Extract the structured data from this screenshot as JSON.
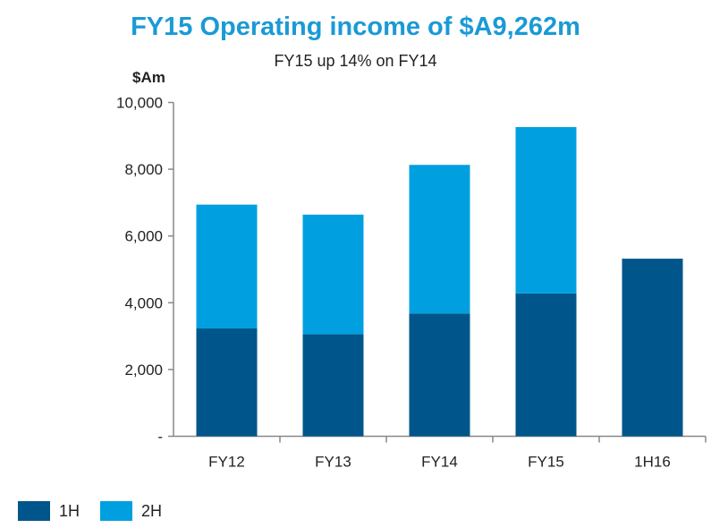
{
  "chart_data": {
    "type": "bar",
    "stacked": true,
    "title": "FY15 Operating income of $A9,262m",
    "subtitle": "FY15 up 14% on FY14",
    "ylabel": "$Am",
    "ylim": [
      0,
      10000
    ],
    "yticks": [
      0,
      2000,
      4000,
      6000,
      8000,
      10000
    ],
    "ytick_labels": [
      "-",
      "2,000",
      "4,000",
      "6,000",
      "8,000",
      "10,000"
    ],
    "categories": [
      "FY12",
      "FY13",
      "FY14",
      "FY15",
      "1H16"
    ],
    "series": [
      {
        "name": "1H",
        "color": "#00568a",
        "values": [
          3230,
          3060,
          3680,
          4280,
          5320
        ]
      },
      {
        "name": "2H",
        "color": "#00a0e0",
        "values": [
          3710,
          3580,
          4450,
          4982,
          0
        ]
      }
    ],
    "grid": false,
    "legend": "bottom-left"
  }
}
